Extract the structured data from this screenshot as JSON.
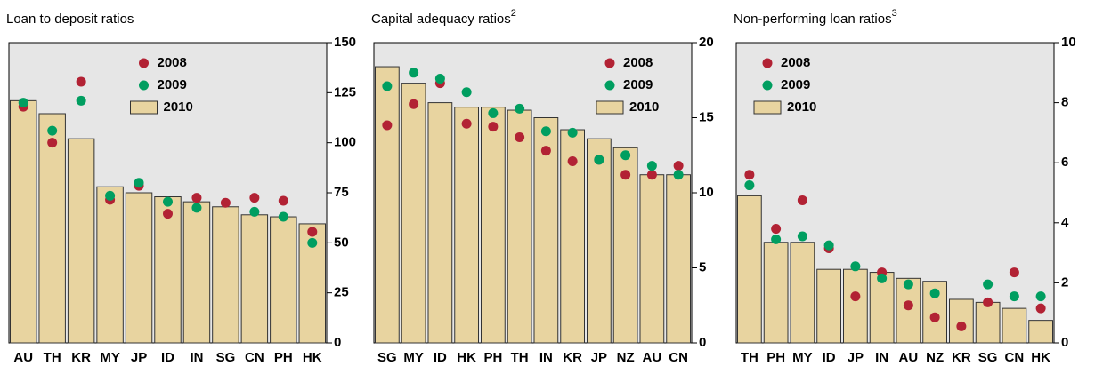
{
  "chart_data": [
    {
      "type": "bar",
      "title": "Loan to deposit ratios",
      "legend": "top-center",
      "categories": [
        "AU",
        "TH",
        "KR",
        "MY",
        "JP",
        "ID",
        "IN",
        "SG",
        "CN",
        "PH",
        "HK"
      ],
      "series": [
        {
          "name": "2008",
          "type": "scatter",
          "color": "#b22234",
          "values": [
            118,
            100,
            130.5,
            71.5,
            78.5,
            64.5,
            72.5,
            70,
            72.5,
            71,
            55.5
          ]
        },
        {
          "name": "2009",
          "type": "scatter",
          "color": "#009e60",
          "values": [
            120,
            106,
            121,
            73.5,
            80,
            70.5,
            67.5,
            null,
            65.5,
            63,
            50
          ]
        },
        {
          "name": "2010",
          "type": "bar",
          "color": "#e8d4a0",
          "values": [
            121,
            114.5,
            102,
            78,
            75,
            73,
            70.5,
            68,
            64,
            63,
            59.5
          ]
        }
      ],
      "ylim": [
        0,
        150
      ],
      "yticks": [
        0,
        25,
        50,
        75,
        100,
        125,
        150
      ]
    },
    {
      "type": "bar",
      "title": "Capital adequacy ratios",
      "footnote": "2",
      "legend": "top-right",
      "categories": [
        "SG",
        "MY",
        "ID",
        "HK",
        "PH",
        "TH",
        "IN",
        "KR",
        "JP",
        "NZ",
        "AU",
        "CN"
      ],
      "series": [
        {
          "name": "2008",
          "type": "scatter",
          "color": "#b22234",
          "values": [
            14.5,
            15.9,
            17.3,
            14.6,
            14.4,
            13.7,
            12.8,
            12.1,
            12.2,
            11.2,
            11.2,
            11.8
          ]
        },
        {
          "name": "2009",
          "type": "scatter",
          "color": "#009e60",
          "values": [
            17.1,
            18.0,
            17.6,
            16.7,
            15.3,
            15.6,
            14.1,
            14.0,
            12.2,
            12.5,
            11.8,
            11.2
          ]
        },
        {
          "name": "2010",
          "type": "bar",
          "color": "#e8d4a0",
          "values": [
            18.4,
            17.3,
            16.0,
            15.7,
            15.7,
            15.5,
            15.0,
            14.2,
            13.6,
            13.0,
            11.2,
            11.2
          ]
        }
      ],
      "ylim": [
        0,
        20
      ],
      "yticks": [
        0,
        5,
        10,
        15,
        20
      ]
    },
    {
      "type": "bar",
      "title": "Non-performing loan ratios",
      "footnote": "3",
      "legend": "top-left",
      "categories": [
        "TH",
        "PH",
        "MY",
        "ID",
        "JP",
        "IN",
        "AU",
        "NZ",
        "KR",
        "SG",
        "CN",
        "HK"
      ],
      "series": [
        {
          "name": "2008",
          "type": "scatter",
          "color": "#b22234",
          "values": [
            5.6,
            3.8,
            4.75,
            3.15,
            1.55,
            2.35,
            1.25,
            0.85,
            0.55,
            1.35,
            2.35,
            1.15
          ]
        },
        {
          "name": "2009",
          "type": "scatter",
          "color": "#009e60",
          "values": [
            5.25,
            3.45,
            3.55,
            3.25,
            2.55,
            2.15,
            1.95,
            1.65,
            null,
            1.95,
            1.55,
            1.55
          ]
        },
        {
          "name": "2010",
          "type": "bar",
          "color": "#e8d4a0",
          "values": [
            4.9,
            3.35,
            3.35,
            2.45,
            2.45,
            2.35,
            2.15,
            2.05,
            1.45,
            1.35,
            1.15,
            0.75
          ]
        }
      ],
      "ylim": [
        0,
        10
      ],
      "yticks": [
        0,
        2,
        4,
        6,
        8,
        10
      ]
    }
  ]
}
